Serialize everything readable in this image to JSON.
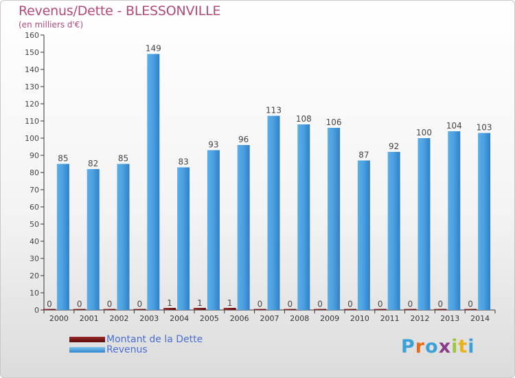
{
  "title": "Revenus/Dette - BLESSONVILLE",
  "subtitle": "(en milliers d'€)",
  "legend": [
    {
      "label": "Montant de la Dette",
      "color": "#6e0f0f"
    },
    {
      "label": "Revenus",
      "color": "#4a9fe0"
    }
  ],
  "logo": {
    "letters": [
      "P",
      "r",
      "o",
      "x",
      "i",
      "t",
      "i"
    ],
    "colors": [
      "#3aa0d8",
      "#e86a1a",
      "#3aa0d8",
      "#8a3a8a",
      "#9ac83c",
      "#e8b21a",
      "#3aa0d8"
    ]
  },
  "colors": {
    "revenus": "#4a9fe0",
    "dette": "#6e0f0f",
    "title": "#b04a7a",
    "legend_text": "#4a6fd4"
  },
  "chart_data": {
    "type": "bar",
    "categories": [
      "2000",
      "2001",
      "2002",
      "2003",
      "2004",
      "2005",
      "2006",
      "2007",
      "2008",
      "2009",
      "2010",
      "2011",
      "2012",
      "2013",
      "2014"
    ],
    "series": [
      {
        "name": "Montant de la Dette",
        "values": [
          0,
          0,
          0,
          0,
          1,
          1,
          1,
          0,
          0,
          0,
          0,
          0,
          0,
          0,
          0
        ]
      },
      {
        "name": "Revenus",
        "values": [
          85,
          82,
          85,
          149,
          83,
          93,
          96,
          113,
          108,
          106,
          87,
          92,
          100,
          104,
          103
        ]
      }
    ],
    "ylim": [
      0,
      160
    ],
    "yticks": [
      0,
      10,
      20,
      30,
      40,
      50,
      60,
      70,
      80,
      90,
      100,
      110,
      120,
      130,
      140,
      150,
      160
    ],
    "grid": false,
    "legend_position": "bottom-left"
  }
}
